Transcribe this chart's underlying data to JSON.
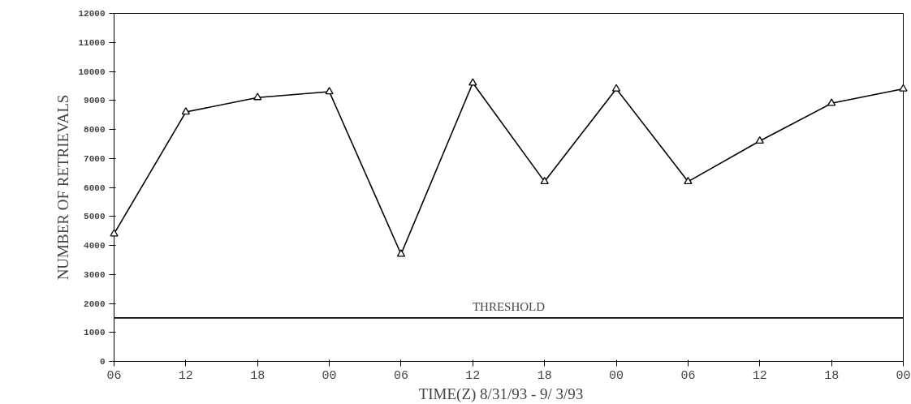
{
  "chart_data": {
    "type": "line",
    "xlabel": "TIME(Z)    8/31/93 -  9/ 3/93",
    "ylabel": "NUMBER OF RETRIEVALS",
    "x": [
      6,
      12,
      18,
      24,
      30,
      36,
      42,
      48,
      54,
      60,
      66,
      72
    ],
    "series": [
      {
        "color": "#000000",
        "values": [
          4400,
          8600,
          9100,
          9300,
          3700,
          9600,
          6200,
          9400,
          6200,
          7600,
          8900,
          9400
        ]
      }
    ],
    "xlim": [
      6,
      72
    ],
    "xticks": [
      {
        "value": 6,
        "label": "06"
      },
      {
        "value": 12,
        "label": "12"
      },
      {
        "value": 18,
        "label": "18"
      },
      {
        "value": 24,
        "label": "00"
      },
      {
        "value": 30,
        "label": "06"
      },
      {
        "value": 36,
        "label": "12"
      },
      {
        "value": 42,
        "label": "18"
      },
      {
        "value": 48,
        "label": "00"
      },
      {
        "value": 54,
        "label": "06"
      },
      {
        "value": 60,
        "label": "12"
      },
      {
        "value": 66,
        "label": "18"
      },
      {
        "value": 72,
        "label": "00"
      }
    ],
    "ylim": [
      0,
      12000
    ],
    "yticks": [
      0,
      1000,
      2000,
      3000,
      4000,
      5000,
      6000,
      7000,
      8000,
      9000,
      10000,
      11000,
      12000
    ],
    "ref_lines": [
      {
        "axis": "y",
        "value": 1500,
        "label": "THRESHOLD",
        "color": "#000000"
      }
    ],
    "marker": "triangle",
    "line_style": "solid",
    "grid": false
  }
}
